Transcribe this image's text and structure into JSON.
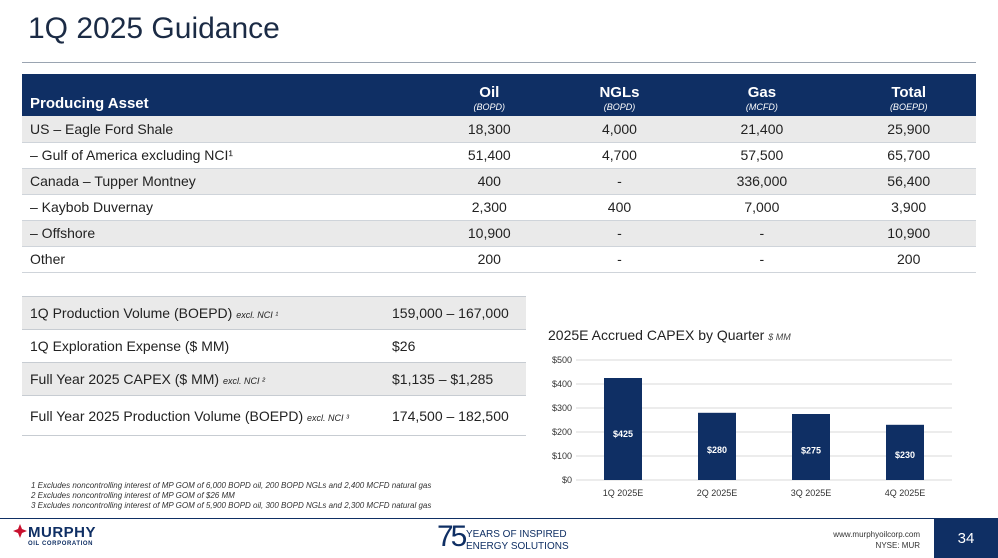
{
  "title": "1Q 2025 Guidance",
  "asset_table": {
    "header": {
      "label": "Producing Asset",
      "columns": [
        {
          "name": "Oil",
          "unit": "(BOPD)"
        },
        {
          "name": "NGLs",
          "unit": "(BOPD)"
        },
        {
          "name": "Gas",
          "unit": "(MCFD)"
        },
        {
          "name": "Total",
          "unit": "(BOEPD)"
        }
      ]
    },
    "rows": [
      {
        "label": "US – Eagle Ford Shale",
        "cells": [
          "18,300",
          "4,000",
          "21,400",
          "25,900"
        ]
      },
      {
        "label": "– Gulf of America excluding NCI¹",
        "cells": [
          "51,400",
          "4,700",
          "57,500",
          "65,700"
        ]
      },
      {
        "label": "Canada – Tupper Montney",
        "cells": [
          "400",
          "-",
          "336,000",
          "56,400"
        ]
      },
      {
        "label": "– Kaybob Duvernay",
        "cells": [
          "2,300",
          "400",
          "7,000",
          "3,900"
        ]
      },
      {
        "label": "– Offshore",
        "cells": [
          "10,900",
          "-",
          "-",
          "10,900"
        ]
      },
      {
        "label": "Other",
        "cells": [
          "200",
          "-",
          "-",
          "200"
        ]
      }
    ]
  },
  "guidance": [
    {
      "label": "1Q Production Volume (BOEPD)",
      "note": "excl. NCI ¹",
      "value": "159,000 – 167,000"
    },
    {
      "label": "1Q Exploration Expense ($ MM)",
      "note": "",
      "value": "$26"
    },
    {
      "label": "Full Year 2025 CAPEX ($ MM)",
      "note": "excl. NCI ²",
      "value": "$1,135 – $1,285"
    },
    {
      "label": "Full Year 2025 Production Volume (BOEPD)",
      "note": "excl. NCI ³",
      "value": "174,500 – 182,500"
    }
  ],
  "chart_data": {
    "type": "bar",
    "title": "2025E Accrued CAPEX by Quarter",
    "title_units": "$ MM",
    "categories": [
      "1Q 2025E",
      "2Q 2025E",
      "3Q 2025E",
      "4Q 2025E"
    ],
    "values": [
      425,
      280,
      275,
      230
    ],
    "value_labels": [
      "$425",
      "$280",
      "$275",
      "$230"
    ],
    "ylim": [
      0,
      500
    ],
    "yticks": [
      0,
      100,
      200,
      300,
      400,
      500
    ],
    "ytick_labels": [
      "$0",
      "$100",
      "$200",
      "$300",
      "$400",
      "$500"
    ],
    "grid": true,
    "bar_color": "#0f2f64"
  },
  "footnotes": [
    "1 Excludes noncontrolling interest of MP GOM of 6,000 BOPD oil, 200 BOPD NGLs and 2,400 MCFD natural gas",
    "2 Excludes noncontrolling interest of MP GOM of $26 MM",
    "3 Excludes noncontrolling interest of MP GOM of 5,900 BOPD oil, 300 BOPD NGLs and 2,300 MCFD natural gas"
  ],
  "footer": {
    "logo_big": "MURPHY",
    "logo_small": "OIL CORPORATION",
    "anniversary_number": "75",
    "anniversary_line1": "YEARS OF INSPIRED",
    "anniversary_line2": "ENERGY SOLUTIONS",
    "website": "www.murphyoilcorp.com",
    "ticker": "NYSE: MUR",
    "page_number": "34"
  },
  "colors": {
    "brand": "#0f2f64",
    "accent_red": "#c8102e"
  }
}
